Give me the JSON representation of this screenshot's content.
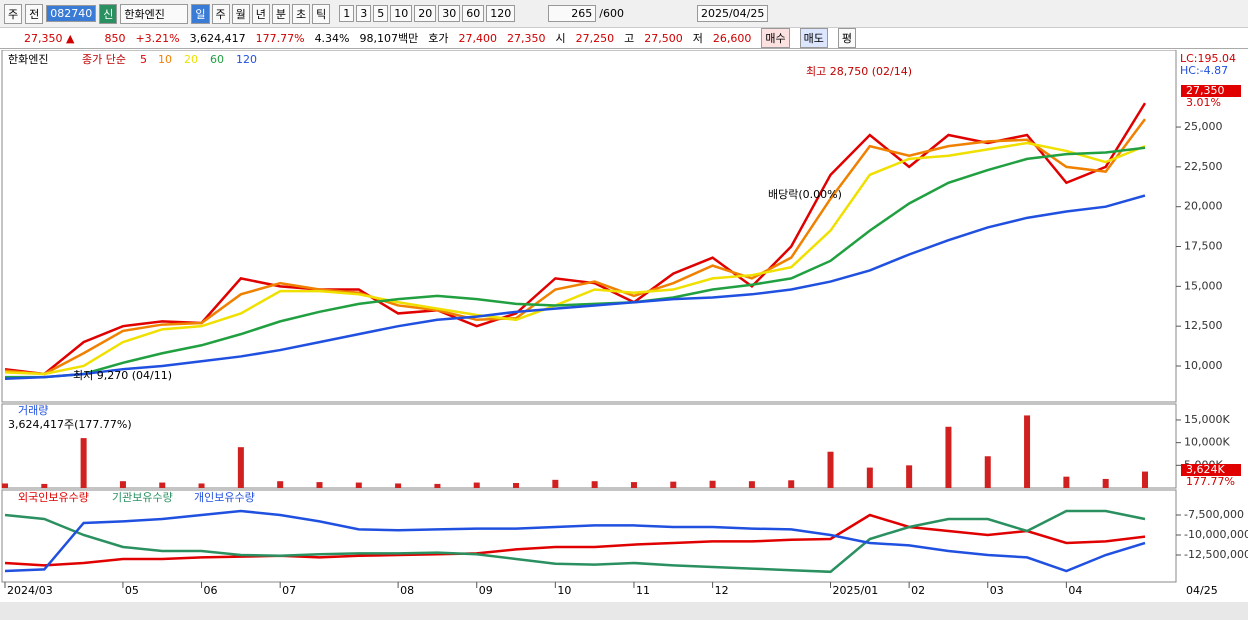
{
  "toolbar": {
    "market": "주",
    "scope": "전",
    "code": "082740",
    "badge": "신",
    "name": "한화엔진",
    "periods": [
      "일",
      "주",
      "월",
      "년",
      "분",
      "초",
      "틱"
    ],
    "intervals": [
      "1",
      "3",
      "5",
      "10",
      "20",
      "30",
      "60",
      "120"
    ],
    "count": "265",
    "max": "/600",
    "date": "2025/04/25"
  },
  "info_bar": {
    "price": "27,350 ▲",
    "change": "850",
    "rate": "+3.21%",
    "volume": "3,624,417",
    "volume_ratio": "177.77%",
    "turnover": "4.34%",
    "amount": "98,107백만",
    "quote_label": "호가",
    "ask": "27,400",
    "bid": "27,350",
    "open_label": "시",
    "open": "27,250",
    "high_label": "고",
    "high": "27,500",
    "low_label": "저",
    "low": "26,600",
    "buy": "매수",
    "sell": "매도",
    "eval": "평"
  },
  "chart_data": [
    {
      "type": "line",
      "title": "한화엔진",
      "legend_label": "종가 단순",
      "lc_label": "LC:195.04",
      "hc_label": "HC:-4.87",
      "last_label": "27,350",
      "last_rate": "3.01%",
      "annotations": [
        "최고 28,750 (02/14)",
        "최저 9,270 (04/11)",
        "배당락(0.00%)"
      ],
      "ylim": [
        7740,
        29710
      ],
      "yticks": [
        {
          "value": 10000,
          "label": "10,000"
        },
        {
          "value": 12500,
          "label": "12,500"
        },
        {
          "value": 15000,
          "label": "15,000"
        },
        {
          "value": 17500,
          "label": "17,500"
        },
        {
          "value": 20000,
          "label": "20,000"
        },
        {
          "value": 22500,
          "label": "22,500"
        },
        {
          "value": 25000,
          "label": "25,000"
        }
      ],
      "series": [
        {
          "name": "5",
          "color": "#e00000",
          "values": [
            9800,
            9500,
            11500,
            12500,
            12800,
            12700,
            15500,
            15000,
            14800,
            14800,
            13300,
            13500,
            12500,
            13300,
            15500,
            15200,
            14000,
            15800,
            16800,
            15000,
            17500,
            22000,
            24500,
            22500,
            24500,
            24000,
            24500,
            21500,
            22500,
            26500
          ]
        },
        {
          "name": "10",
          "color": "#f08000",
          "values": [
            9700,
            9500,
            10800,
            12200,
            12600,
            12700,
            14500,
            15200,
            14800,
            14600,
            13800,
            13500,
            12900,
            13000,
            14800,
            15300,
            14400,
            15200,
            16300,
            15500,
            16800,
            20500,
            23800,
            23200,
            23800,
            24100,
            24200,
            22500,
            22200,
            25500
          ]
        },
        {
          "name": "20",
          "color": "#f0e000",
          "values": [
            9600,
            9500,
            10000,
            11500,
            12300,
            12500,
            13300,
            14700,
            14700,
            14500,
            14000,
            13600,
            13200,
            12900,
            13800,
            14800,
            14600,
            14800,
            15500,
            15700,
            16200,
            18500,
            22000,
            23000,
            23200,
            23600,
            24000,
            23500,
            22800,
            23800
          ]
        },
        {
          "name": "60",
          "color": "#20a040",
          "values": [
            9300,
            9300,
            9500,
            10200,
            10800,
            11300,
            12000,
            12800,
            13400,
            13900,
            14200,
            14400,
            14200,
            13900,
            13800,
            13900,
            14000,
            14300,
            14800,
            15100,
            15500,
            16600,
            18500,
            20200,
            21500,
            22300,
            23000,
            23300,
            23400,
            23700
          ]
        },
        {
          "name": "120",
          "color": "#2050e0",
          "values": [
            9200,
            9300,
            9500,
            9800,
            10000,
            10300,
            10600,
            11000,
            11500,
            12000,
            12500,
            12900,
            13100,
            13400,
            13600,
            13800,
            14000,
            14200,
            14300,
            14500,
            14800,
            15300,
            16000,
            17000,
            17900,
            18700,
            19300,
            19700,
            20000,
            20700
          ]
        }
      ]
    },
    {
      "type": "bar",
      "title": "거래량",
      "subtitle": "3,624,417주(177.77%)",
      "last_label": "3,624K",
      "last_rate": "177.77%",
      "color": "#d02020",
      "ylim": [
        0,
        18300
      ],
      "yticks": [
        {
          "value": 5000,
          "label": "5,000K"
        },
        {
          "value": 10000,
          "label": "10,000K"
        },
        {
          "value": 15000,
          "label": "15,000K"
        }
      ],
      "values": [
        1000,
        900,
        11000,
        1500,
        1200,
        1000,
        9000,
        1500,
        1300,
        1200,
        1000,
        900,
        1200,
        1100,
        1800,
        1500,
        1300,
        1400,
        1600,
        1500,
        1700,
        8000,
        4500,
        5000,
        13500,
        7000,
        16000,
        2500,
        2000,
        3624
      ]
    },
    {
      "type": "line",
      "ylim": [
        -15875000,
        -4625000
      ],
      "last_date": "04/25",
      "yticks": [
        {
          "value": -7500000,
          "label": "-7,500,000"
        },
        {
          "value": -10000000,
          "label": "-10,000,000"
        },
        {
          "value": -12500000,
          "label": "-12,500,000"
        }
      ],
      "categories": [
        "2024/03",
        null,
        null,
        "05",
        null,
        "06",
        null,
        "07",
        null,
        null,
        "08",
        null,
        "09",
        null,
        "10",
        null,
        "11",
        null,
        "12",
        null,
        null,
        "2025/01",
        null,
        "02",
        null,
        "03",
        null,
        "04",
        null,
        null
      ],
      "series": [
        {
          "name": "외국인보유수량",
          "color": "#e00000",
          "values": [
            -13500000,
            -13800000,
            -13500000,
            -13000000,
            -13000000,
            -12800000,
            -12700000,
            -12600000,
            -12800000,
            -12600000,
            -12500000,
            -12400000,
            -12300000,
            -11800000,
            -11500000,
            -11500000,
            -11200000,
            -11000000,
            -10800000,
            -10800000,
            -10600000,
            -10500000,
            -7500000,
            -9000000,
            -9500000,
            -10000000,
            -9500000,
            -11000000,
            -10800000,
            -10200000
          ]
        },
        {
          "name": "기관보유수량",
          "color": "#2a9060",
          "values": [
            -7500000,
            -8000000,
            -10000000,
            -11500000,
            -12000000,
            -12000000,
            -12500000,
            -12600000,
            -12400000,
            -12300000,
            -12300000,
            -12200000,
            -12400000,
            -13000000,
            -13600000,
            -13700000,
            -13500000,
            -13800000,
            -14000000,
            -14200000,
            -14400000,
            -14600000,
            -10500000,
            -9000000,
            -8000000,
            -8000000,
            -9500000,
            -7000000,
            -7000000,
            -8000000
          ]
        },
        {
          "name": "개인보유수량",
          "color": "#2050e0",
          "values": [
            -14500000,
            -14300000,
            -8500000,
            -8300000,
            -8000000,
            -7500000,
            -7000000,
            -7500000,
            -8300000,
            -9300000,
            -9400000,
            -9300000,
            -9200000,
            -9200000,
            -9000000,
            -8800000,
            -8800000,
            -9000000,
            -9000000,
            -9200000,
            -9300000,
            -10000000,
            -11000000,
            -11300000,
            -12000000,
            -12500000,
            -12800000,
            -14500000,
            -12500000,
            -11000000
          ]
        }
      ]
    }
  ]
}
